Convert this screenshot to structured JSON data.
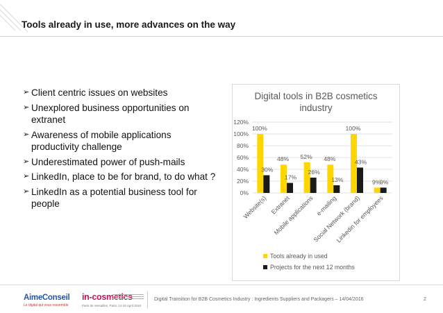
{
  "slide": {
    "title": "Tools already in use, more advances on the way",
    "bullets": [
      "Client centric issues on websites",
      "Unexplored business opportunities on extranet",
      "Awareness of mobile applications productivity challenge",
      "Underestimated power of push-mails",
      "LinkedIn, place to be for brand, to do what ?",
      "LinkedIn as a potential business tool for people"
    ]
  },
  "footer": {
    "logo_left": "AimeConseil",
    "logo_left_tagline": "Le digital qui vous ressemble",
    "logo_right": "in-cosmetics",
    "logo_right_sub": "Paris de Versailles, Paris, 14-16 April 2016",
    "text": "Digital Transition for B2B Cosmetics Industry : Ingredients Suppliers and Packagers – 14/04/2016",
    "page_number": "2"
  },
  "colors": {
    "series1": "#ffd600",
    "series2": "#1a1a1a",
    "grid": "#d9d9d9",
    "text": "#595959"
  },
  "chart_data": {
    "type": "bar",
    "title": "Digital tools in B2B cosmetics industry",
    "categories": [
      "Website(s)",
      "Extranet",
      "Mobile applications",
      "e-mailing",
      "Social Network (brand)",
      "Linkedin for employees"
    ],
    "series": [
      {
        "name": "Tools already in  used",
        "values": [
          100,
          48,
          52,
          48,
          100,
          9
        ]
      },
      {
        "name": "Projects for the next 12 months",
        "values": [
          30,
          17,
          26,
          13,
          43,
          9
        ]
      }
    ],
    "y_ticks": [
      "0%",
      "20%",
      "40%",
      "60%",
      "80%",
      "100%",
      "120%"
    ],
    "ylim": [
      0,
      120
    ],
    "value_suffix": "%",
    "grid": true,
    "legend_position": "bottom"
  }
}
